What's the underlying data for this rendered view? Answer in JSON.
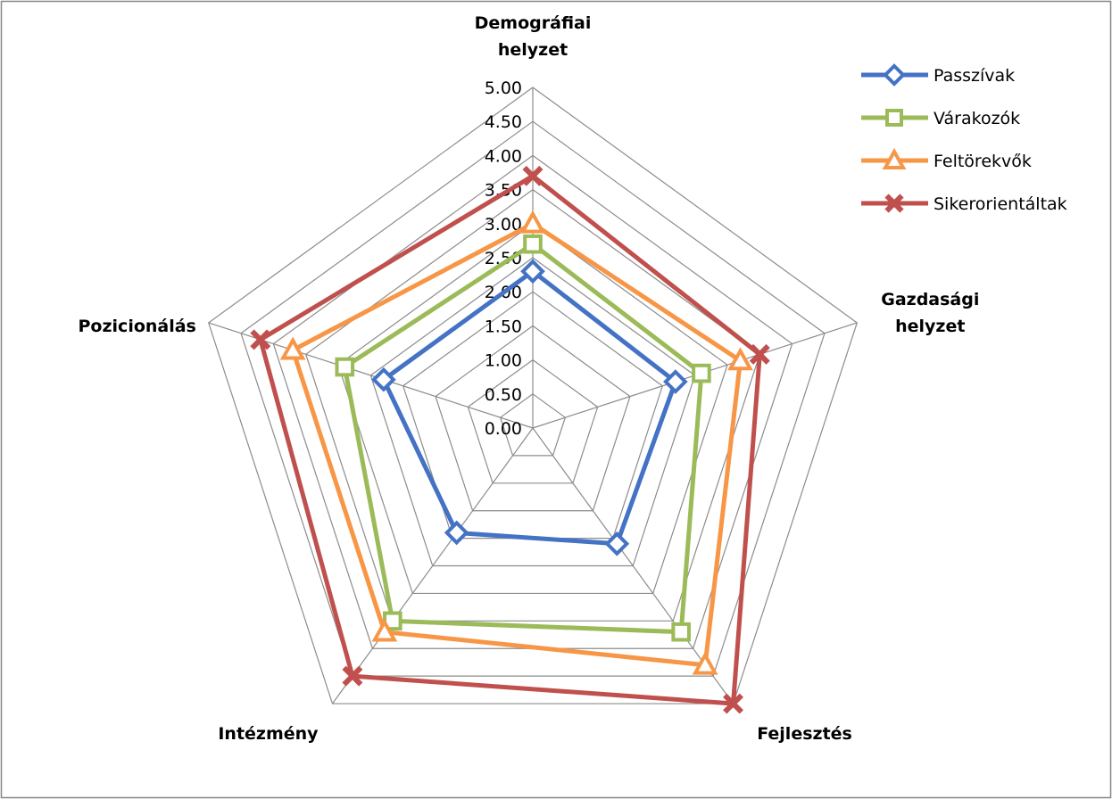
{
  "chart_data": {
    "type": "radar",
    "axes": [
      "Demográfiai helyzet",
      "Gazdasági helyzet",
      "Fejlesztés",
      "Intézmény",
      "Pozicionálás"
    ],
    "axis_label_lines": [
      [
        "Demográfiai",
        "helyzet"
      ],
      [
        "Gazdasági",
        "helyzet"
      ],
      [
        "Fejlesztés"
      ],
      [
        "Intézmény"
      ],
      [
        "Pozicionálás"
      ]
    ],
    "rlim": [
      0,
      5
    ],
    "ticks": [
      "0.00",
      "0.50",
      "1.00",
      "1.50",
      "2.00",
      "2.50",
      "3.00",
      "3.50",
      "4.00",
      "4.50",
      "5.00"
    ],
    "tick_values": [
      0,
      0.5,
      1,
      1.5,
      2,
      2.5,
      3,
      3.5,
      4,
      4.5,
      5
    ],
    "grid": true,
    "legend_position": "top-right",
    "series": [
      {
        "name": "Passzívak",
        "color": "#4472C4",
        "marker": "diamond",
        "values": [
          2.3,
          2.2,
          2.1,
          1.9,
          2.3
        ]
      },
      {
        "name": "Várakozók",
        "color": "#9BBB59",
        "marker": "square",
        "values": [
          2.7,
          2.6,
          3.7,
          3.5,
          2.9
        ]
      },
      {
        "name": "Feltörekvők",
        "color": "#F79646",
        "marker": "triangle",
        "values": [
          3.0,
          3.2,
          4.3,
          3.7,
          3.7
        ]
      },
      {
        "name": "Sikerorientáltak",
        "color": "#C0504D",
        "marker": "x",
        "values": [
          3.7,
          3.5,
          5.0,
          4.5,
          4.2
        ]
      }
    ]
  }
}
